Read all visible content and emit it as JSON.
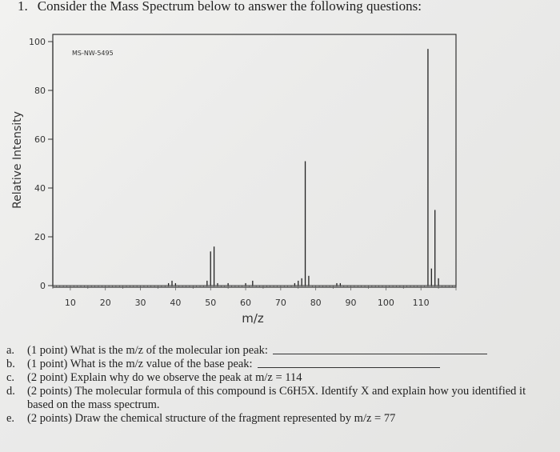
{
  "header": {
    "number": "1.",
    "text": "Consider the Mass Spectrum below to answer the following questions:"
  },
  "chart_data": {
    "type": "bar",
    "title": "MS-NW-5495",
    "xlabel": "m/z",
    "ylabel": "Relative Intensity",
    "xlim": [
      5,
      120
    ],
    "ylim": [
      0,
      100
    ],
    "xticks": [
      "10",
      "20",
      "30",
      "40",
      "50",
      "60",
      "70",
      "80",
      "90",
      "100",
      "110"
    ],
    "yticks": [
      "0",
      "20",
      "40",
      "60",
      "80",
      "100"
    ],
    "grid": false,
    "peaks": [
      {
        "mz": 38,
        "intensity": 1
      },
      {
        "mz": 39,
        "intensity": 2
      },
      {
        "mz": 40,
        "intensity": 1
      },
      {
        "mz": 49,
        "intensity": 2
      },
      {
        "mz": 50,
        "intensity": 14
      },
      {
        "mz": 51,
        "intensity": 16
      },
      {
        "mz": 52,
        "intensity": 1
      },
      {
        "mz": 55,
        "intensity": 1
      },
      {
        "mz": 60,
        "intensity": 1
      },
      {
        "mz": 62,
        "intensity": 2
      },
      {
        "mz": 74,
        "intensity": 1
      },
      {
        "mz": 75,
        "intensity": 2
      },
      {
        "mz": 76,
        "intensity": 3
      },
      {
        "mz": 77,
        "intensity": 51
      },
      {
        "mz": 78,
        "intensity": 4
      },
      {
        "mz": 86,
        "intensity": 1
      },
      {
        "mz": 87,
        "intensity": 1
      },
      {
        "mz": 112,
        "intensity": 97
      },
      {
        "mz": 113,
        "intensity": 7
      },
      {
        "mz": 114,
        "intensity": 31
      },
      {
        "mz": 115,
        "intensity": 3
      }
    ]
  },
  "questions": [
    {
      "letter": "a.",
      "text": "(1 point) What is the m/z of the molecular ion peak:",
      "blank": true
    },
    {
      "letter": "b.",
      "text": "(1 point) What is the m/z value of the base peak:",
      "blank": true
    },
    {
      "letter": "c.",
      "text": "(2 point) Explain why do we observe the peak at m/z = 114",
      "blank": false
    },
    {
      "letter": "d.",
      "text": "(2 points) The molecular formula of this compound is C6H5X. Identify X and explain how you identified it based on the mass spectrum.",
      "blank": false
    },
    {
      "letter": "e.",
      "text": "(2 points) Draw the chemical structure of the fragment represented by m/z = 77",
      "blank": false
    }
  ]
}
